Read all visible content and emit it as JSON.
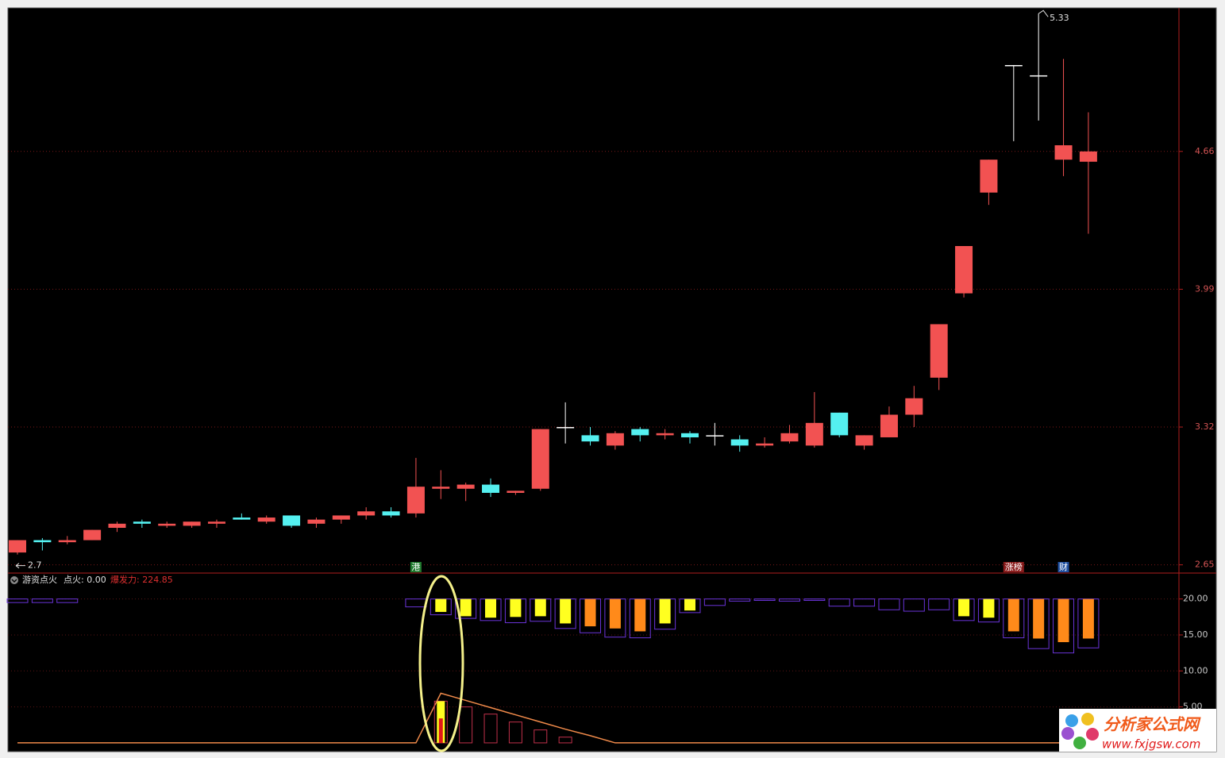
{
  "chart_data": [
    {
      "type": "candlestick",
      "open": [
        2.71,
        2.77,
        2.76,
        2.77,
        2.83,
        2.86,
        2.84,
        2.84,
        2.85,
        2.88,
        2.86,
        2.89,
        2.85,
        2.87,
        2.89,
        2.91,
        2.9,
        3.02,
        3.02,
        3.04,
        3.0,
        3.02,
        3.32,
        3.28,
        3.23,
        3.31,
        3.28,
        3.29,
        3.28,
        3.26,
        3.23,
        3.25,
        3.23,
        3.39,
        3.23,
        3.27,
        3.38,
        3.56,
        3.97,
        4.46,
        5.08,
        5.03,
        4.62,
        4.61
      ],
      "high": [
        2.77,
        2.78,
        2.79,
        2.82,
        2.86,
        2.87,
        2.86,
        2.86,
        2.87,
        2.9,
        2.89,
        2.89,
        2.88,
        2.89,
        2.93,
        2.93,
        3.17,
        3.11,
        3.05,
        3.07,
        3.01,
        3.31,
        3.44,
        3.32,
        3.3,
        3.32,
        3.31,
        3.3,
        3.34,
        3.28,
        3.27,
        3.33,
        3.49,
        3.39,
        3.28,
        3.42,
        3.52,
        3.82,
        4.2,
        4.62,
        5.08,
        5.33,
        5.11,
        4.85
      ],
      "low": [
        2.7,
        2.72,
        2.75,
        2.77,
        2.81,
        2.83,
        2.83,
        2.83,
        2.83,
        2.87,
        2.85,
        2.83,
        2.83,
        2.85,
        2.87,
        2.88,
        2.88,
        2.97,
        2.96,
        2.98,
        2.99,
        3.01,
        3.24,
        3.23,
        3.21,
        3.25,
        3.26,
        3.24,
        3.23,
        3.2,
        3.22,
        3.24,
        3.22,
        3.27,
        3.21,
        3.27,
        3.32,
        3.5,
        3.95,
        4.4,
        4.71,
        4.81,
        4.54,
        4.26
      ],
      "close": [
        2.77,
        2.76,
        2.77,
        2.82,
        2.85,
        2.85,
        2.85,
        2.86,
        2.86,
        2.87,
        2.88,
        2.84,
        2.87,
        2.89,
        2.91,
        2.89,
        3.03,
        3.03,
        3.04,
        3.0,
        3.01,
        3.31,
        3.32,
        3.25,
        3.29,
        3.28,
        3.29,
        3.27,
        3.28,
        3.23,
        3.24,
        3.29,
        3.34,
        3.28,
        3.28,
        3.38,
        3.46,
        3.82,
        4.2,
        4.62,
        5.08,
        5.03,
        4.69,
        4.66
      ],
      "up_color": "#f25252",
      "down_color": "#54f0f0",
      "doji_color": "#ffffff",
      "ylim": [
        2.61,
        5.35
      ],
      "yticks": [
        2.65,
        3.32,
        3.99,
        4.66
      ],
      "grid": true,
      "tags": [
        {
          "index": 16,
          "text": "港",
          "color": "#1f7a2e"
        },
        {
          "index": 40,
          "text": "涨榜",
          "color": "#8a1c1c"
        },
        {
          "index": 42,
          "text": "财",
          "color": "#1f4fa0"
        }
      ]
    },
    {
      "type": "bar",
      "title": "游资点火",
      "legend_texts": [
        "点火: 0.00",
        "爆发力: 224.85"
      ],
      "base": 20,
      "ylim": [
        -1,
        23.6
      ],
      "yticks": [
        {
          "value": 5,
          "label": "5.00"
        },
        {
          "value": 10,
          "label": "10.00"
        },
        {
          "value": 15,
          "label": "15.00"
        },
        {
          "value": 20,
          "label": "20.00"
        }
      ],
      "grid": true,
      "series": [
        {
          "kind": "hang-box",
          "color": "#6a34d8",
          "values": [
            19.5,
            19.5,
            19.5,
            null,
            null,
            null,
            null,
            null,
            null,
            null,
            null,
            null,
            null,
            null,
            null,
            null,
            18.9,
            17.8,
            17.3,
            17.0,
            16.7,
            16.9,
            15.9,
            15.3,
            14.7,
            14.6,
            15.8,
            18.1,
            19.1,
            19.7,
            19.8,
            19.7,
            19.8,
            19.0,
            19.0,
            18.5,
            18.3,
            18.5,
            17.0,
            16.8,
            14.6,
            13.1,
            12.5,
            13.2
          ]
        },
        {
          "kind": "hang-bar",
          "color": "#ffff20",
          "values": [
            null,
            null,
            null,
            null,
            null,
            null,
            null,
            null,
            null,
            null,
            null,
            null,
            null,
            null,
            null,
            null,
            null,
            18.2,
            17.6,
            17.4,
            17.5,
            17.6,
            16.6,
            null,
            null,
            null,
            16.6,
            18.4,
            null,
            null,
            null,
            null,
            null,
            null,
            null,
            null,
            null,
            null,
            17.6,
            17.4,
            null,
            null,
            null,
            null
          ]
        },
        {
          "kind": "hang-bar",
          "color": "#ff8a1a",
          "values": [
            null,
            null,
            null,
            null,
            null,
            null,
            null,
            null,
            null,
            null,
            null,
            null,
            null,
            null,
            null,
            null,
            null,
            null,
            null,
            null,
            null,
            null,
            null,
            16.2,
            15.9,
            15.5,
            null,
            null,
            null,
            null,
            null,
            null,
            null,
            null,
            null,
            null,
            null,
            null,
            null,
            null,
            15.5,
            14.5,
            14.0,
            14.5
          ]
        },
        {
          "kind": "line",
          "color": "#f08a4a",
          "values": [
            0,
            0,
            0,
            0,
            0,
            0,
            0,
            0,
            0,
            0,
            0,
            0,
            0,
            0,
            0,
            0,
            0,
            6.9,
            5.9,
            4.9,
            3.9,
            2.9,
            1.9,
            1.0,
            0,
            0,
            0,
            0,
            0,
            0,
            0,
            0,
            0,
            0,
            0,
            0,
            0,
            0,
            0,
            0,
            0,
            0,
            0,
            0
          ]
        },
        {
          "kind": "rise-box",
          "color": "#c0304a",
          "values": [
            null,
            null,
            null,
            null,
            null,
            null,
            null,
            null,
            null,
            null,
            null,
            null,
            null,
            null,
            null,
            null,
            null,
            5.8,
            5.0,
            4.0,
            2.9,
            1.8,
            0.8,
            null,
            null,
            null,
            null,
            null,
            null,
            null,
            null,
            null,
            null,
            null,
            null,
            null,
            null,
            null,
            null,
            null,
            null,
            null,
            null,
            null
          ]
        },
        {
          "kind": "rise-fill",
          "color": "#ffff20",
          "values": [
            null,
            null,
            null,
            null,
            null,
            null,
            null,
            null,
            null,
            null,
            null,
            null,
            null,
            null,
            null,
            null,
            null,
            5.8,
            null,
            null,
            null,
            null,
            null,
            null,
            null,
            null,
            null,
            null,
            null,
            null,
            null,
            null,
            null,
            null,
            null,
            null,
            null,
            null,
            null,
            null,
            null,
            null,
            null,
            null
          ]
        },
        {
          "kind": "rise-core",
          "color": "#e01818",
          "values": [
            null,
            null,
            null,
            null,
            null,
            null,
            null,
            null,
            null,
            null,
            null,
            null,
            null,
            null,
            null,
            null,
            null,
            3.4,
            null,
            null,
            null,
            null,
            null,
            null,
            null,
            null,
            null,
            null,
            null,
            null,
            null,
            null,
            null,
            null,
            null,
            null,
            null,
            null,
            null,
            null,
            null,
            null,
            null,
            null
          ]
        }
      ]
    }
  ],
  "watermark": {
    "title": "分析家公式网",
    "url": "www.fxjgsw.com"
  }
}
